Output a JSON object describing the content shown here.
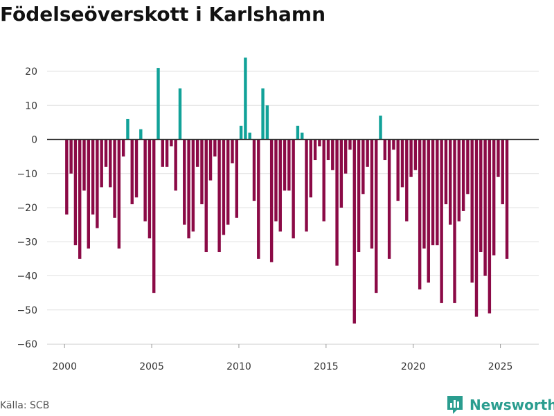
{
  "title": "Födelseöverskott i Karlshamn",
  "source": "Källa: SCB",
  "brand": {
    "name": "Newsworthy",
    "icon": "newsworthy-logo-icon"
  },
  "colors": {
    "positive": "#12a299",
    "negative": "#8b0a46",
    "grid": "#e0e0e0",
    "zero_line": "#333333"
  },
  "chart_data": {
    "type": "bar",
    "title": "Födelseöverskott i Karlshamn",
    "xlabel": "",
    "ylabel": "",
    "ylim": [
      -62,
      25
    ],
    "xlim": [
      1999.0,
      2027.2
    ],
    "x_ticks": [
      2000,
      2005,
      2010,
      2015,
      2020,
      2025
    ],
    "y_ticks": [
      20,
      10,
      0,
      -10,
      -20,
      -30,
      -40,
      -50,
      -60
    ],
    "grid": true,
    "series": [
      {
        "name": "Födelseöverskott",
        "frequency": "quarterly",
        "start": "2000Q1",
        "values": [
          -22,
          -10,
          -31,
          -35,
          -15,
          -32,
          -22,
          -26,
          -14,
          -8,
          -14,
          -23,
          -32,
          -5,
          6,
          -19,
          -17,
          3,
          -24,
          -29,
          -45,
          21,
          -8,
          -8,
          -2,
          -15,
          15,
          -25,
          -29,
          -27,
          -8,
          -19,
          -33,
          -12,
          -5,
          -33,
          -28,
          -25,
          -7,
          -23,
          4,
          24,
          2,
          -18,
          -35,
          15,
          10,
          -36,
          -24,
          -27,
          -15,
          -15,
          -29,
          4,
          2,
          -27,
          -17,
          -6,
          -2,
          -24,
          -6,
          -9,
          -37,
          -20,
          -10,
          -3,
          -54,
          -33,
          -16,
          -8,
          -32,
          -45,
          7,
          -6,
          -35,
          -3,
          -18,
          -14,
          -24,
          -11,
          -9,
          -44,
          -32,
          -42,
          -31,
          -31,
          -48,
          -19,
          -25,
          -48,
          -24,
          -21,
          -16,
          -42,
          -52,
          -33,
          -40,
          -51,
          -34,
          -11,
          -19,
          -35
        ]
      }
    ]
  }
}
